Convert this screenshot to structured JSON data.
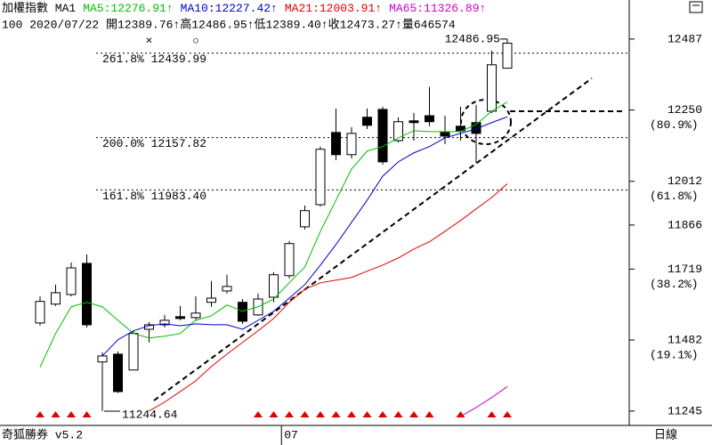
{
  "chart_data": {
    "type": "candlestick",
    "title": "加權指數 MA1",
    "info_line": "100 2020/07/22 開12389.76↑高12486.95↑低12389.40↑收12473.27↑量646574",
    "footer_left": "奇狐勝券 v5.2",
    "footer_right": "日線",
    "categories": [
      null,
      null,
      null,
      null,
      null,
      null,
      null,
      null,
      null,
      null,
      null,
      null,
      null,
      null,
      null,
      null,
      null,
      null,
      null,
      null,
      null,
      null,
      null,
      null,
      null,
      null,
      null,
      null,
      null,
      null,
      null
    ],
    "x_labels": [
      {
        "index": 15,
        "label": "07"
      }
    ],
    "open": [
      11539,
      11602,
      11634,
      11738,
      11409,
      11435,
      11382,
      11518,
      11533,
      11560,
      11557,
      11608,
      11646,
      11608,
      11566,
      11625,
      11697,
      11860,
      11934,
      12175,
      12101,
      12226,
      12252,
      12148,
      12214,
      12231,
      12175,
      12196,
      12208,
      12246,
      12389.76
    ],
    "high": [
      11628,
      11667,
      11741,
      11768,
      11441,
      11444,
      11513,
      11542,
      11566,
      11596,
      11628,
      11679,
      11700,
      11619,
      11637,
      11709,
      11813,
      11931,
      12128,
      12255,
      12193,
      12255,
      12261,
      12226,
      12240,
      12327,
      12231,
      12261,
      12267,
      12448,
      12486.95
    ],
    "low": [
      11530,
      11596,
      11628,
      11524,
      11244.64,
      11305,
      11382,
      11474,
      11524,
      11548,
      11548,
      11593,
      11637,
      11536,
      11563,
      11608,
      11688,
      11851,
      11928,
      12083,
      12089,
      12187,
      12068,
      12142,
      12148,
      12196,
      12136,
      12148,
      12074,
      12240,
      12389.4
    ],
    "close": [
      11611,
      11640,
      11723,
      11533,
      11429,
      11310,
      11504,
      11533,
      11548,
      11554,
      11572,
      11622,
      11661,
      11545,
      11619,
      11700,
      11804,
      11914,
      12119,
      12101,
      12172,
      12199,
      12077,
      12211,
      12208,
      12211,
      12163,
      12181,
      12172,
      12401,
      12473.27
    ],
    "up_color": "#ffffff",
    "down_color": "#000000",
    "series": [
      {
        "name": "MA5",
        "legend": "MA5:12276.91↑",
        "color": "#00c000",
        "values": [
          11391,
          11504,
          11593,
          11608,
          11593,
          11548,
          11504,
          11489,
          11495,
          11504,
          11548,
          11563,
          11599,
          11578,
          11593,
          11619,
          11673,
          11726,
          11845,
          11949,
          12053,
          12113,
          12128,
          12157,
          12181,
          12178,
          12178,
          12178,
          12202,
          12246,
          12276.91
        ]
      },
      {
        "name": "MA10",
        "legend": "MA10:12227.42↑",
        "color": "#0000c0",
        "values": [
          null,
          null,
          null,
          null,
          11429,
          11483,
          11513,
          11530,
          11536,
          11530,
          11536,
          11533,
          11533,
          11518,
          11548,
          11578,
          11622,
          11667,
          11732,
          11801,
          11875,
          11949,
          12029,
          12077,
          12107,
          12128,
          12157,
          12172,
          12187,
          12208,
          12227.42
        ]
      },
      {
        "name": "MA21",
        "legend": "MA21:12003.91↑",
        "color": "#e00000",
        "values": [
          null,
          null,
          null,
          null,
          null,
          null,
          null,
          11245,
          11275,
          11310,
          11346,
          11394,
          11435,
          11474,
          11513,
          11554,
          11608,
          11652,
          11673,
          11682,
          11691,
          11712,
          11732,
          11756,
          11786,
          11810,
          11845,
          11881,
          11920,
          11958,
          12003.91
        ]
      },
      {
        "name": "MA65",
        "legend": "MA65:11326.89↑",
        "color": "#d000d0",
        "values": [
          null,
          null,
          null,
          null,
          null,
          null,
          null,
          null,
          null,
          null,
          null,
          null,
          null,
          null,
          null,
          null,
          null,
          null,
          null,
          null,
          null,
          null,
          null,
          null,
          null,
          null,
          null,
          11227,
          11257,
          11290,
          11326.89
        ]
      }
    ],
    "ylim": [
      11197,
      12552
    ],
    "yticks": [
      12487,
      12250,
      12012,
      11866,
      11719,
      11482,
      11245
    ],
    "ytick_sublabels": [
      {
        "value": 12250,
        "label": "(80.9%)"
      },
      {
        "value": 12012,
        "label": "(61.8%)"
      },
      {
        "value": 11719,
        "label": "(38.2%)"
      },
      {
        "value": 11482,
        "label": "(19.1%)"
      }
    ],
    "fib_levels": [
      {
        "value": 12439.99,
        "label": "261.8% 12439.99"
      },
      {
        "value": 12157.82,
        "label": "200.0% 12157.82"
      },
      {
        "value": 11983.4,
        "label": "161.8% 11983.40"
      }
    ],
    "fib_color": "#0000d0",
    "annotations": [
      {
        "index": 30,
        "value": 12486.95,
        "label": "12486.95"
      },
      {
        "index": 4,
        "value": 11244.64,
        "label": "11244.64"
      }
    ],
    "signal_candles": [
      0,
      1,
      2,
      3,
      14,
      15,
      16,
      17,
      18,
      19,
      20,
      21,
      22,
      23,
      24,
      25,
      27,
      29,
      30
    ],
    "signal_color": "#e00000",
    "top_markers": [
      {
        "index": 7,
        "label": "×"
      },
      {
        "index": 10,
        "label": "○"
      }
    ]
  }
}
